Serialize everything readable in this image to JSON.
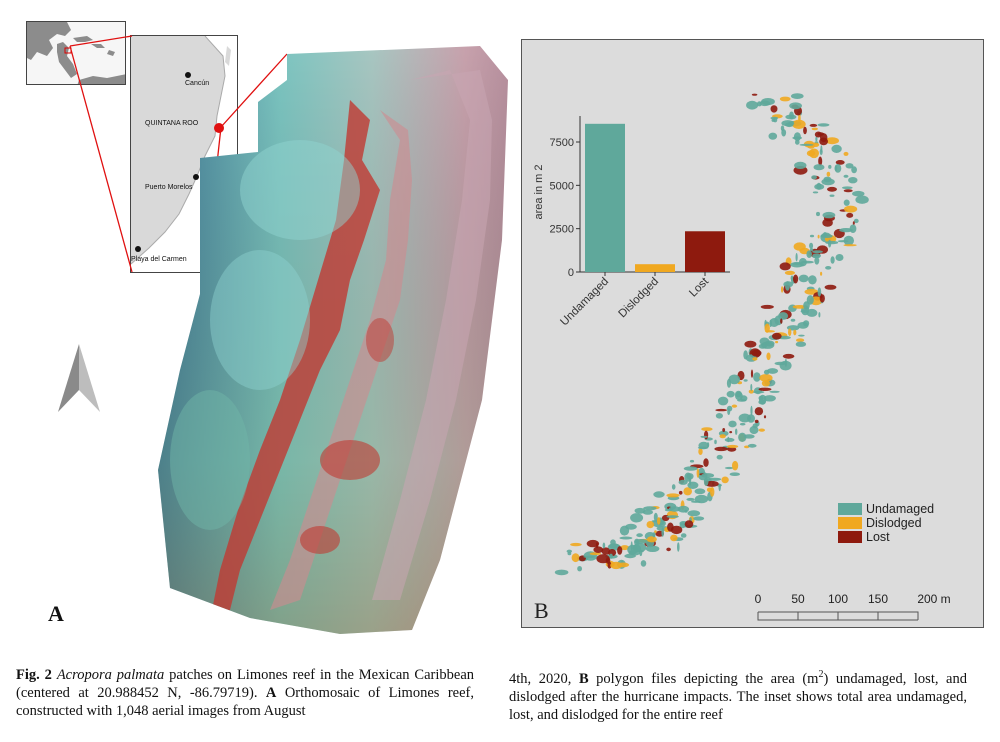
{
  "panel_a": {
    "letter": "A",
    "inset_labels": {
      "cancun": "Cancún",
      "quintana_roo": "QUINTANA ROO",
      "puerto_morelos": "Puerto Morelos",
      "playa_del_carmen": "Playa del Carmen"
    }
  },
  "panel_b": {
    "letter": "B",
    "legend": [
      {
        "label": "Undamaged",
        "color": "#5fa89b"
      },
      {
        "label": "Dislodged",
        "color": "#f0a820"
      },
      {
        "label": "Lost",
        "color": "#8e1a0e"
      }
    ],
    "scale_labels": [
      "0",
      "50",
      "100",
      "150",
      "200 m"
    ]
  },
  "chart_data": {
    "type": "bar",
    "categories": [
      "Undamaged",
      "Dislodged",
      "Lost"
    ],
    "values": [
      8550,
      450,
      2350
    ],
    "colors": [
      "#5fa89b",
      "#f0a820",
      "#8e1a0e"
    ],
    "ylabel": "area in m 2",
    "xlabel": "",
    "yticks": [
      0,
      2500,
      5000,
      7500
    ],
    "ytick_labels": [
      "0",
      "2500",
      "5000",
      "7500"
    ],
    "ylim": [
      0,
      9000
    ],
    "grid": false
  },
  "caption": {
    "left": {
      "fig_label": "Fig. 2",
      "species": "Acropora palmata",
      "text1": " patches on Limones reef in the Mexican Caribbean (centered at 20.988452 N, -86.79719). ",
      "a_label": "A",
      "text2": " Orthomosaic of Limones reef, constructed with 1,048 aerial images from August"
    },
    "right": {
      "text1": "4th, 2020, ",
      "b_label": "B",
      "text2": " polygon files depicting the area (m",
      "sup": "2",
      "text3": ") undamaged, lost, and dislodged after the hurricane impacts. The inset shows total area undamaged, lost, and dislodged for the entire reef"
    }
  }
}
